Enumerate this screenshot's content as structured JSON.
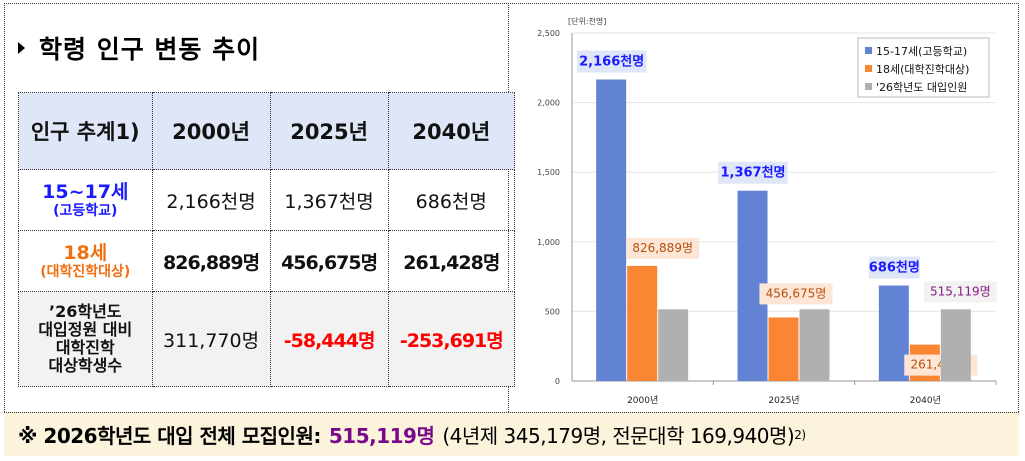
{
  "title": "학령 인구 변동 추이",
  "table": {
    "header": [
      "인구 추계1)",
      "2000년",
      "2025년",
      "2040년"
    ],
    "rows": [
      {
        "label": "15~17세",
        "sublabel": "(고등학교)",
        "values": [
          "2,166천명",
          "1,367천명",
          "686천명"
        ]
      },
      {
        "label": "18세",
        "sublabel": "(대학진학대상)",
        "values": [
          "826,889명",
          "456,675명",
          "261,428명"
        ]
      },
      {
        "label_lines": [
          "’26학년도",
          "대입정원 대비",
          "대학진학",
          "대상학생수"
        ],
        "values": [
          "311,770명",
          "-58,444명",
          "-253,691명"
        ]
      }
    ]
  },
  "footer": {
    "prefix": "※ 2026학년도 대입 전체 모집인원:",
    "total": "515,119명",
    "detail": "(4년제 345,179명, 전문대학 169,940명)",
    "note": "2)"
  },
  "chart_data": {
    "type": "bar",
    "unit_label": "[단위:천명]",
    "categories": [
      "2000년",
      "2025년",
      "2040년"
    ],
    "ylim": [
      0,
      2500
    ],
    "yticks": [
      0,
      500,
      1000,
      1500,
      2000,
      2500
    ],
    "ytick_labels": [
      "0",
      "500",
      "1,000",
      "1,500",
      "2,000",
      "2,500"
    ],
    "grid": true,
    "legend_position": "top-right",
    "series": [
      {
        "name": "15-17세(고등학교)",
        "color": "#6282d4",
        "values": [
          2166,
          1367,
          686
        ],
        "labels": [
          "2,166천명",
          "1,367천명",
          "686천명"
        ],
        "label_color": "#1a1aff",
        "label_bg": "#dfe6f7"
      },
      {
        "name": "18세(대학진학대상)",
        "color": "#fa8533",
        "values": [
          826.889,
          456.675,
          261.428
        ],
        "labels": [
          "826,889명",
          "456,675명",
          "261,428명"
        ],
        "label_color": "#b5500f",
        "label_bg": "#fde6d6"
      },
      {
        "name": "'26학년도 대입인원",
        "color": "#b0b0b0",
        "values": [
          515.119,
          515.119,
          515.119
        ],
        "labels": [
          null,
          null,
          "515,119명"
        ],
        "label_color": "#8a1a8a",
        "label_bg": "#f2f2f2"
      }
    ]
  }
}
